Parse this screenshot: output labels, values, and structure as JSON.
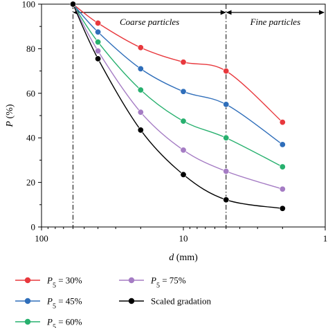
{
  "chart_data": {
    "type": "line",
    "title": "",
    "xlabel": "d (mm)",
    "xlabel_var": "d",
    "xlabel_unit": "(mm)",
    "ylabel": "P (%)",
    "ylabel_var": "P",
    "ylabel_unit": "(%)",
    "x_scale": "log",
    "x_reversed": true,
    "xlim": [
      100,
      1
    ],
    "ylim": [
      0,
      100
    ],
    "x_ticks": [
      100,
      10,
      1
    ],
    "y_ticks": [
      0,
      20,
      40,
      60,
      80,
      100
    ],
    "x": [
      60,
      40,
      20,
      10,
      5,
      2
    ],
    "series": [
      {
        "name": "P5 = 30%",
        "legend_main": "P",
        "legend_sub": "5",
        "legend_rest": " = 30%",
        "color": "#e8383d",
        "values": [
          100,
          91.5,
          80.5,
          74,
          70,
          47
        ]
      },
      {
        "name": "P5 = 45%",
        "legend_main": "P",
        "legend_sub": "5",
        "legend_rest": " = 45%",
        "color": "#2f6eba",
        "values": [
          100,
          87.5,
          71,
          60.8,
          55,
          37
        ]
      },
      {
        "name": "P5 = 60%",
        "legend_main": "P",
        "legend_sub": "5",
        "legend_rest": " = 60%",
        "color": "#27b06e",
        "values": [
          100,
          83,
          61.5,
          47.5,
          40,
          27
        ]
      },
      {
        "name": "P5 = 75%",
        "legend_main": "P",
        "legend_sub": "5",
        "legend_rest": " = 75%",
        "color": "#a57cc4",
        "values": [
          100,
          79,
          51.5,
          34.5,
          25,
          17
        ]
      },
      {
        "name": "Scaled gradation",
        "legend_main": "Scaled gradation",
        "legend_sub": "",
        "legend_rest": "",
        "color": "#000000",
        "values": [
          100,
          75.5,
          43.5,
          23.5,
          12.2,
          8.3
        ]
      }
    ],
    "regions": [
      {
        "label": "Coarse particles",
        "from": 60,
        "to": 5
      },
      {
        "label": "Fine particles",
        "from": 5,
        "to": 1
      }
    ],
    "divider_lines": [
      60,
      5
    ],
    "grid": false,
    "legend_position": "bottom"
  }
}
